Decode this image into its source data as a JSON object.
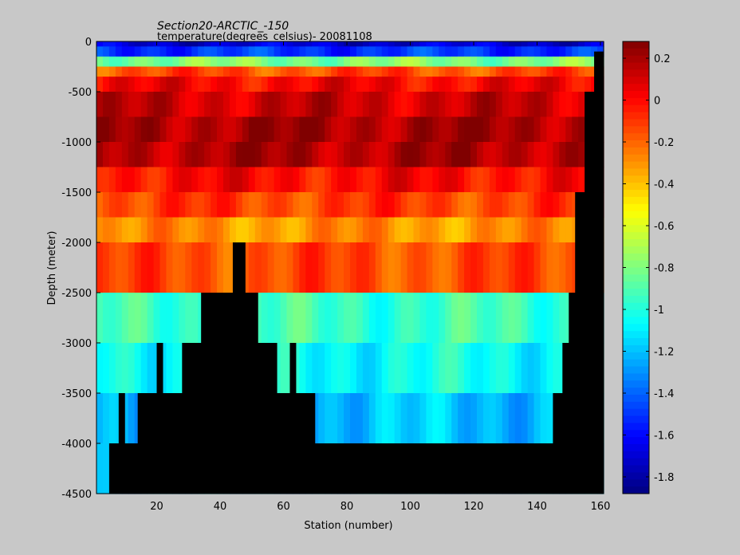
{
  "chart_data": {
    "type": "heatmap",
    "title": "Section20-ARCTIC_-150",
    "subtitle": "temperature(degrees_celsius)- 20081108",
    "xlabel": "Station (number)",
    "ylabel": "Depth (meter)",
    "xlim": [
      1,
      161
    ],
    "ylim": [
      -4500,
      0
    ],
    "x_ticks": [
      20,
      40,
      60,
      80,
      100,
      120,
      140,
      160
    ],
    "y_ticks": [
      0,
      -500,
      -1000,
      -1500,
      -2000,
      -2500,
      -3000,
      -3500,
      -4000,
      -4500
    ],
    "grid": false,
    "colorbar": {
      "min": -1.88,
      "max": 0.28,
      "ticks": [
        0.2,
        0,
        -0.2,
        -0.4,
        -0.6,
        -0.8,
        -1,
        -1.2,
        -1.4,
        -1.6,
        -1.8
      ],
      "colormap": "jet",
      "placement": "right"
    },
    "depth_levels": [
      -50,
      -150,
      -250,
      -350,
      -500,
      -750,
      -1000,
      -1250,
      -1500,
      -1750,
      -2000,
      -2500,
      -3000,
      -3500,
      -4000,
      -4500
    ],
    "layer_mean_temperature": [
      -1.7,
      -1.5,
      -0.8,
      -0.15,
      0.02,
      0.12,
      0.2,
      0.18,
      0.0,
      -0.12,
      -0.3,
      -0.15,
      -0.95,
      -1.05,
      -1.2,
      -1.2
    ],
    "bottom_profile": {
      "station": [
        1,
        5,
        8,
        10,
        12,
        14,
        18,
        20,
        22,
        28,
        30,
        34,
        38,
        44,
        48,
        50,
        52,
        56,
        58,
        60,
        62,
        64,
        68,
        70,
        72,
        140,
        145,
        148,
        150,
        152,
        155,
        158,
        161
      ],
      "depth": [
        -4500,
        -4000,
        -3500,
        -4000,
        -4000,
        -3500,
        -3500,
        -3000,
        -3500,
        -3000,
        -3000,
        -2500,
        -2500,
        -2000,
        -2500,
        -2500,
        -3000,
        -3000,
        -3500,
        -3500,
        -3000,
        -3500,
        -3500,
        -4000,
        -4000,
        -4000,
        -3500,
        -3000,
        -2500,
        -1500,
        -500,
        -100,
        0
      ]
    }
  }
}
